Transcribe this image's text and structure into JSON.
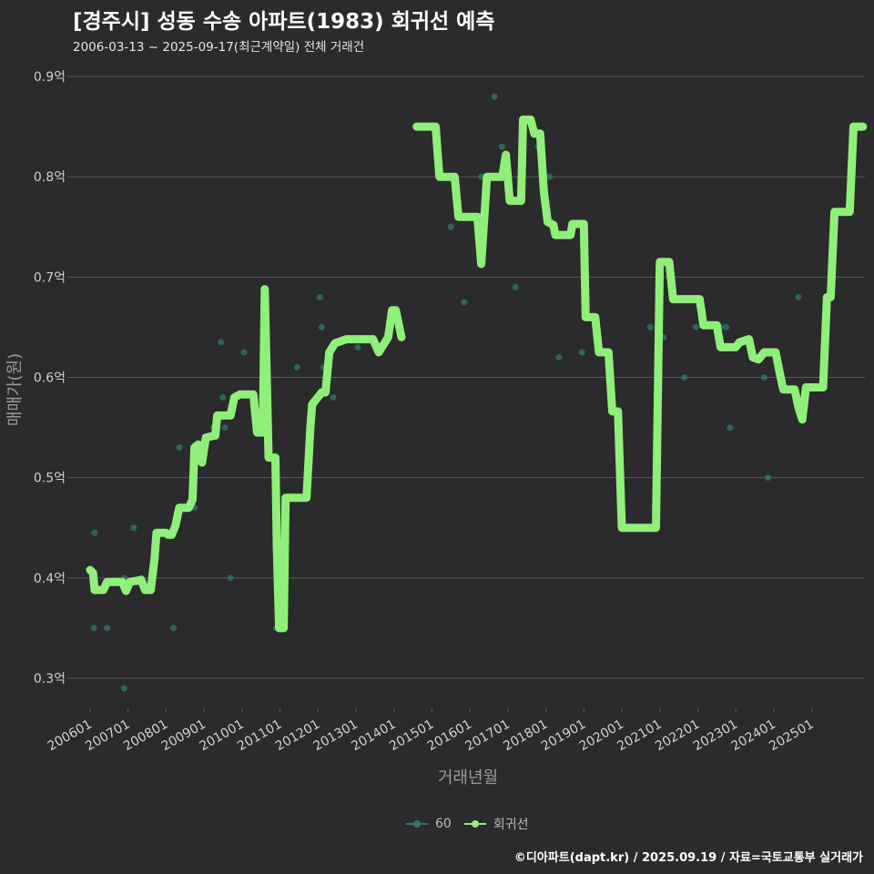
{
  "title": "[경주시] 성동 수송 아파트(1983) 회귀선 예측",
  "subtitle": "2006-03-13 ~ 2025-09-17(최근계약일) 전체 거래건",
  "footer": "©디아파트(dapt.kr) / 2025.09.19 / 자료=국토교통부 실거래가",
  "colors": {
    "background": "#2b2a2c",
    "grid": "#5a595b",
    "line": "#90ee7a",
    "points": "#2f7a6a"
  },
  "chart_data": {
    "type": "line",
    "xlabel": "거래년월",
    "ylabel": "매매가(원)",
    "ylim": [
      0.27,
      0.92
    ],
    "xlim": [
      2005.5,
      2026.4
    ],
    "y_ticks": [
      {
        "value": 0.3,
        "label": "0.3억"
      },
      {
        "value": 0.4,
        "label": "0.4억"
      },
      {
        "value": 0.5,
        "label": "0.5억"
      },
      {
        "value": 0.6,
        "label": "0.6억"
      },
      {
        "value": 0.7,
        "label": "0.7억"
      },
      {
        "value": 0.8,
        "label": "0.8억"
      },
      {
        "value": 0.9,
        "label": "0.9억"
      }
    ],
    "x_ticks": [
      {
        "value": 2006,
        "label": "200601"
      },
      {
        "value": 2007,
        "label": "200701"
      },
      {
        "value": 2008,
        "label": "200801"
      },
      {
        "value": 2009,
        "label": "200901"
      },
      {
        "value": 2010,
        "label": "201001"
      },
      {
        "value": 2011,
        "label": "201101"
      },
      {
        "value": 2012,
        "label": "201201"
      },
      {
        "value": 2013,
        "label": "201301"
      },
      {
        "value": 2014,
        "label": "201401"
      },
      {
        "value": 2015,
        "label": "201501"
      },
      {
        "value": 2016,
        "label": "201601"
      },
      {
        "value": 2017,
        "label": "201701"
      },
      {
        "value": 2018,
        "label": "201801"
      },
      {
        "value": 2019,
        "label": "201901"
      },
      {
        "value": 2020,
        "label": "202001"
      },
      {
        "value": 2021,
        "label": "202101"
      },
      {
        "value": 2022,
        "label": "202201"
      },
      {
        "value": 2023,
        "label": "202301"
      },
      {
        "value": 2024,
        "label": "202401"
      },
      {
        "value": 2025,
        "label": "202501"
      }
    ],
    "legend": [
      {
        "name": "60",
        "color": "#2f7a6a"
      },
      {
        "name": "회귀선",
        "color": "#90ee7a"
      }
    ],
    "series": [
      {
        "name": "60",
        "type": "scatter",
        "points": [
          [
            2006.1,
            0.35
          ],
          [
            2006.12,
            0.445
          ],
          [
            2006.45,
            0.35
          ],
          [
            2006.9,
            0.29
          ],
          [
            2006.9,
            0.4
          ],
          [
            2007.15,
            0.45
          ],
          [
            2007.35,
            0.4
          ],
          [
            2008.2,
            0.35
          ],
          [
            2008.35,
            0.53
          ],
          [
            2008.75,
            0.47
          ],
          [
            2009.25,
            0.55
          ],
          [
            2009.45,
            0.635
          ],
          [
            2009.5,
            0.58
          ],
          [
            2009.55,
            0.55
          ],
          [
            2009.7,
            0.4
          ],
          [
            2010.05,
            0.625
          ],
          [
            2010.9,
            0.35
          ],
          [
            2011.45,
            0.61
          ],
          [
            2012.05,
            0.68
          ],
          [
            2012.1,
            0.65
          ],
          [
            2012.15,
            0.61
          ],
          [
            2012.25,
            0.61
          ],
          [
            2012.4,
            0.58
          ],
          [
            2013.05,
            0.63
          ],
          [
            2014.6,
            0.85
          ],
          [
            2015.5,
            0.75
          ],
          [
            2015.85,
            0.675
          ],
          [
            2016.3,
            0.8
          ],
          [
            2016.65,
            0.88
          ],
          [
            2016.85,
            0.83
          ],
          [
            2017.2,
            0.69
          ],
          [
            2017.8,
            0.83
          ],
          [
            2018.1,
            0.8
          ],
          [
            2018.35,
            0.62
          ],
          [
            2018.95,
            0.625
          ],
          [
            2020.75,
            0.65
          ],
          [
            2021.1,
            0.64
          ],
          [
            2021.65,
            0.6
          ],
          [
            2021.95,
            0.65
          ],
          [
            2022.6,
            0.65
          ],
          [
            2022.75,
            0.65
          ],
          [
            2022.85,
            0.55
          ],
          [
            2023.75,
            0.6
          ],
          [
            2023.85,
            0.5
          ],
          [
            2024.65,
            0.68
          ]
        ]
      },
      {
        "name": "회귀선",
        "type": "line",
        "segments": [
          [
            [
              2006.0,
              0.408
            ],
            [
              2006.08,
              0.405
            ],
            [
              2006.12,
              0.388
            ],
            [
              2006.35,
              0.388
            ],
            [
              2006.45,
              0.396
            ],
            [
              2006.85,
              0.396
            ],
            [
              2006.95,
              0.387
            ],
            [
              2007.05,
              0.396
            ],
            [
              2007.35,
              0.398
            ],
            [
              2007.45,
              0.388
            ],
            [
              2007.6,
              0.388
            ],
            [
              2007.7,
              0.42
            ],
            [
              2007.75,
              0.445
            ],
            [
              2008.0,
              0.445
            ],
            [
              2008.05,
              0.443
            ],
            [
              2008.15,
              0.443
            ],
            [
              2008.25,
              0.452
            ],
            [
              2008.35,
              0.47
            ],
            [
              2008.6,
              0.47
            ],
            [
              2008.7,
              0.478
            ],
            [
              2008.75,
              0.53
            ],
            [
              2008.85,
              0.533
            ],
            [
              2008.95,
              0.515
            ],
            [
              2009.05,
              0.54
            ],
            [
              2009.3,
              0.542
            ],
            [
              2009.35,
              0.562
            ],
            [
              2009.7,
              0.562
            ],
            [
              2009.8,
              0.58
            ],
            [
              2009.95,
              0.583
            ],
            [
              2010.3,
              0.583
            ],
            [
              2010.4,
              0.545
            ],
            [
              2010.55,
              0.545
            ],
            [
              2010.6,
              0.688
            ],
            [
              2010.7,
              0.52
            ],
            [
              2010.88,
              0.52
            ],
            [
              2010.92,
              0.43
            ],
            [
              2010.98,
              0.35
            ],
            [
              2011.1,
              0.35
            ],
            [
              2011.15,
              0.48
            ],
            [
              2011.7,
              0.48
            ],
            [
              2011.8,
              0.55
            ],
            [
              2011.85,
              0.573
            ],
            [
              2012.1,
              0.585
            ],
            [
              2012.2,
              0.585
            ],
            [
              2012.3,
              0.625
            ],
            [
              2012.45,
              0.634
            ],
            [
              2012.75,
              0.638
            ],
            [
              2013.45,
              0.638
            ],
            [
              2013.6,
              0.625
            ],
            [
              2013.85,
              0.64
            ],
            [
              2013.95,
              0.667
            ],
            [
              2014.05,
              0.667
            ],
            [
              2014.2,
              0.64
            ]
          ],
          [
            [
              2014.6,
              0.85
            ],
            [
              2015.1,
              0.85
            ],
            [
              2015.2,
              0.8
            ],
            [
              2015.6,
              0.8
            ],
            [
              2015.7,
              0.76
            ],
            [
              2016.2,
              0.76
            ],
            [
              2016.3,
              0.713
            ],
            [
              2016.45,
              0.8
            ],
            [
              2016.85,
              0.8
            ],
            [
              2016.95,
              0.822
            ],
            [
              2017.05,
              0.776
            ],
            [
              2017.35,
              0.776
            ],
            [
              2017.4,
              0.857
            ],
            [
              2017.6,
              0.857
            ],
            [
              2017.7,
              0.843
            ],
            [
              2017.85,
              0.843
            ],
            [
              2017.95,
              0.785
            ],
            [
              2018.05,
              0.755
            ],
            [
              2018.2,
              0.752
            ],
            [
              2018.25,
              0.742
            ],
            [
              2018.65,
              0.742
            ],
            [
              2018.7,
              0.753
            ],
            [
              2019.0,
              0.753
            ],
            [
              2019.05,
              0.66
            ],
            [
              2019.3,
              0.66
            ],
            [
              2019.4,
              0.625
            ],
            [
              2019.65,
              0.625
            ],
            [
              2019.75,
              0.566
            ],
            [
              2019.9,
              0.566
            ],
            [
              2020.0,
              0.45
            ],
            [
              2020.9,
              0.45
            ],
            [
              2021.0,
              0.715
            ],
            [
              2021.25,
              0.715
            ],
            [
              2021.35,
              0.678
            ],
            [
              2022.05,
              0.678
            ],
            [
              2022.15,
              0.652
            ],
            [
              2022.5,
              0.652
            ],
            [
              2022.6,
              0.63
            ],
            [
              2023.0,
              0.63
            ],
            [
              2023.1,
              0.635
            ],
            [
              2023.35,
              0.638
            ],
            [
              2023.45,
              0.62
            ],
            [
              2023.6,
              0.618
            ],
            [
              2023.75,
              0.625
            ],
            [
              2024.05,
              0.625
            ],
            [
              2024.15,
              0.606
            ],
            [
              2024.25,
              0.588
            ],
            [
              2024.55,
              0.588
            ],
            [
              2024.65,
              0.57
            ],
            [
              2024.75,
              0.558
            ],
            [
              2024.85,
              0.59
            ],
            [
              2025.3,
              0.59
            ],
            [
              2025.4,
              0.68
            ],
            [
              2025.5,
              0.68
            ],
            [
              2025.6,
              0.765
            ],
            [
              2026.0,
              0.765
            ],
            [
              2026.1,
              0.85
            ],
            [
              2026.35,
              0.85
            ]
          ]
        ]
      }
    ]
  }
}
